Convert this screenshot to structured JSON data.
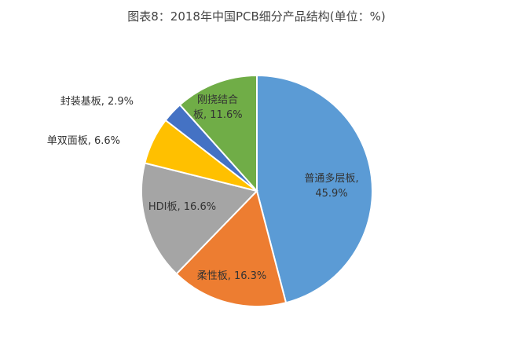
{
  "chart_data": {
    "type": "pie",
    "title": "图表8：2018年中国PCB细分产品结构(单位：%)",
    "start": "top",
    "direction": "clockwise",
    "slices": [
      {
        "label": "普通多层板",
        "value": 45.9,
        "display": "45.9%",
        "color": "#5B9BD5"
      },
      {
        "label": "柔性板",
        "value": 16.3,
        "display": "16.3%",
        "color": "#ED7D31"
      },
      {
        "label": "HDI板",
        "value": 16.6,
        "display": "16.6%",
        "color": "#A5A5A5"
      },
      {
        "label": "单双面板",
        "value": 6.6,
        "display": "6.6%",
        "color": "#FFC000"
      },
      {
        "label": "封装基板",
        "value": 2.9,
        "display": "2.9%",
        "color": "#4472C4"
      },
      {
        "label": "刚挠结合板",
        "value": 11.6,
        "display": "11.6%",
        "color": "#70AD47"
      }
    ]
  }
}
